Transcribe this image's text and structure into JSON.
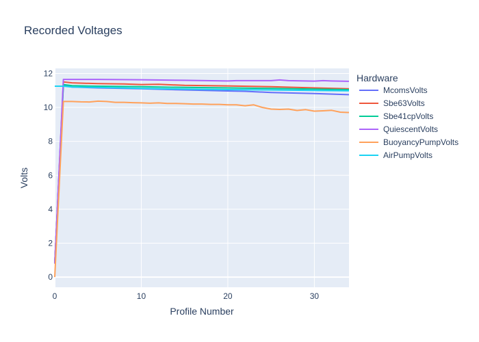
{
  "chart_data": {
    "type": "line",
    "title": "Recorded Voltages",
    "xlabel": "Profile Number",
    "ylabel": "Volts",
    "xlim": [
      0,
      34
    ],
    "ylim": [
      -0.6,
      12.3
    ],
    "xticks": [
      0,
      10,
      20,
      30
    ],
    "yticks": [
      0,
      2,
      4,
      6,
      8,
      10,
      12
    ],
    "legend_title": "Hardware",
    "legend_position": "right",
    "series": [
      {
        "name": "McomsVolts",
        "color": "#636efa",
        "x": [
          0,
          1,
          2,
          5,
          10,
          15,
          20,
          22,
          25,
          30,
          34
        ],
        "y": [
          0.8,
          11.3,
          11.2,
          11.15,
          11.1,
          11.03,
          10.97,
          10.95,
          10.88,
          10.82,
          10.75
        ]
      },
      {
        "name": "Sbe63Volts",
        "color": "#ef553b",
        "x": [
          0,
          1,
          2,
          5,
          8,
          10,
          12,
          15,
          20,
          25,
          30,
          34
        ],
        "y": [
          0.8,
          11.5,
          11.45,
          11.4,
          11.38,
          11.35,
          11.36,
          11.3,
          11.27,
          11.22,
          11.15,
          11.1
        ]
      },
      {
        "name": "Sbe41cpVolts",
        "color": "#00cc96",
        "x": [
          0,
          1,
          2,
          5,
          10,
          15,
          20,
          25,
          30,
          34
        ],
        "y": [
          0.8,
          11.35,
          11.28,
          11.25,
          11.22,
          11.18,
          11.15,
          11.12,
          11.08,
          11.05
        ]
      },
      {
        "name": "QuiescentVolts",
        "color": "#ab63fa",
        "x": [
          0,
          1,
          5,
          10,
          15,
          20,
          21,
          25,
          26,
          27,
          30,
          31,
          32,
          34
        ],
        "y": [
          0.8,
          11.65,
          11.65,
          11.63,
          11.6,
          11.56,
          11.58,
          11.58,
          11.62,
          11.58,
          11.55,
          11.58,
          11.56,
          11.54
        ]
      },
      {
        "name": "BuoyancyPumpVolts",
        "color": "#ffa15a",
        "x": [
          0,
          1,
          2,
          3,
          4,
          5,
          6,
          7,
          8,
          9,
          10,
          11,
          12,
          13,
          14,
          15,
          16,
          17,
          18,
          19,
          20,
          21,
          22,
          23,
          24,
          25,
          26,
          27,
          28,
          29,
          30,
          31,
          32,
          33,
          34
        ],
        "y": [
          0.0,
          10.35,
          10.35,
          10.33,
          10.32,
          10.37,
          10.35,
          10.3,
          10.3,
          10.28,
          10.27,
          10.25,
          10.27,
          10.23,
          10.23,
          10.22,
          10.2,
          10.2,
          10.18,
          10.18,
          10.15,
          10.15,
          10.1,
          10.15,
          10.0,
          9.9,
          9.88,
          9.9,
          9.82,
          9.87,
          9.78,
          9.8,
          9.83,
          9.72,
          9.7
        ]
      },
      {
        "name": "AirPumpVolts",
        "color": "#19d3f3",
        "x": [
          0,
          1,
          2,
          5,
          10,
          15,
          20,
          25,
          30,
          34
        ],
        "y": [
          11.25,
          11.25,
          11.2,
          11.18,
          11.12,
          11.08,
          11.05,
          11.03,
          11.0,
          10.98
        ]
      }
    ]
  }
}
